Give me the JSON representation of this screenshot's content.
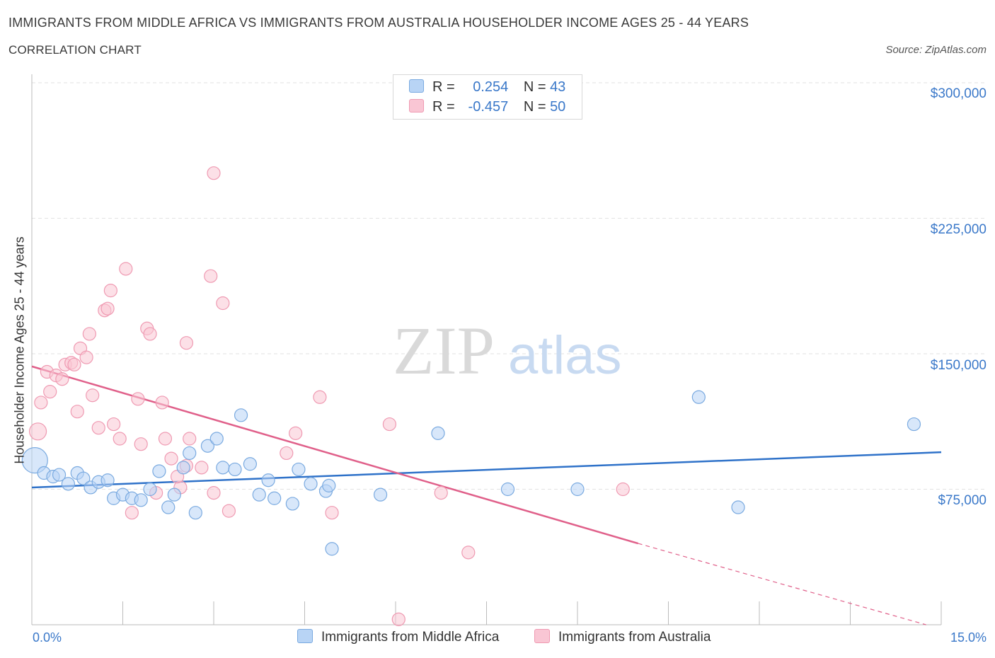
{
  "header": {
    "title": "IMMIGRANTS FROM MIDDLE AFRICA VS IMMIGRANTS FROM AUSTRALIA HOUSEHOLDER INCOME AGES 25 - 44 YEARS",
    "subtitle": "CORRELATION CHART",
    "source": "Source: ZipAtlas.com"
  },
  "watermark": {
    "zip": "ZIP",
    "atlas": "atlas"
  },
  "legend": {
    "series1": {
      "r_label": "R =",
      "r_value": "0.254",
      "n_label": "N =",
      "n_value": "43"
    },
    "series2": {
      "r_label": "R =",
      "r_value": "-0.457",
      "n_label": "N =",
      "n_value": "50"
    }
  },
  "colors": {
    "blue_fill": "#b8d4f5",
    "blue_stroke": "#7aaae0",
    "blue_line": "#2f72c9",
    "pink_fill": "#f9c6d4",
    "pink_stroke": "#ef9ab2",
    "pink_line": "#e0608a",
    "grid": "#e2e2e2",
    "axis_text": "#3a78c9"
  },
  "chart_data": {
    "type": "scatter",
    "title": "IMMIGRANTS FROM MIDDLE AFRICA VS IMMIGRANTS FROM AUSTRALIA HOUSEHOLDER INCOME AGES 25 - 44 YEARS",
    "subtitle": "CORRELATION CHART",
    "xlabel": "",
    "ylabel": "Householder Income Ages 25 - 44 years",
    "xlim": [
      0,
      15
    ],
    "ylim": [
      0,
      300000
    ],
    "x_tick_labels": [
      "0.0%",
      "15.0%"
    ],
    "y_ticks": [
      75000,
      150000,
      225000,
      300000
    ],
    "y_tick_labels": [
      "$75,000",
      "$150,000",
      "$225,000",
      "$300,000"
    ],
    "grid": true,
    "legend_position": "top-center",
    "series": [
      {
        "name": "Immigrants from Middle Africa",
        "color": "#7aaae0",
        "R": 0.254,
        "N": 43,
        "trend": {
          "x": [
            0.0,
            15.0
          ],
          "y": [
            76000,
            95500
          ]
        },
        "points": [
          [
            0.05,
            91000
          ],
          [
            0.2,
            84000
          ],
          [
            0.35,
            82000
          ],
          [
            0.45,
            83000
          ],
          [
            0.6,
            78000
          ],
          [
            0.75,
            84000
          ],
          [
            0.85,
            81000
          ],
          [
            0.97,
            76000
          ],
          [
            1.1,
            79000
          ],
          [
            1.25,
            80000
          ],
          [
            1.35,
            70000
          ],
          [
            1.5,
            72000
          ],
          [
            1.65,
            70000
          ],
          [
            1.8,
            69000
          ],
          [
            1.95,
            75000
          ],
          [
            2.1,
            85000
          ],
          [
            2.25,
            65000
          ],
          [
            2.35,
            72000
          ],
          [
            2.5,
            87000
          ],
          [
            2.6,
            95000
          ],
          [
            2.7,
            62000
          ],
          [
            2.9,
            99000
          ],
          [
            3.05,
            103000
          ],
          [
            3.15,
            87000
          ],
          [
            3.35,
            86000
          ],
          [
            3.45,
            116000
          ],
          [
            3.6,
            89000
          ],
          [
            3.75,
            72000
          ],
          [
            3.9,
            80000
          ],
          [
            4.0,
            70000
          ],
          [
            4.3,
            67000
          ],
          [
            4.4,
            86000
          ],
          [
            4.6,
            78000
          ],
          [
            4.85,
            74000
          ],
          [
            4.9,
            77000
          ],
          [
            4.95,
            42000
          ],
          [
            5.75,
            72000
          ],
          [
            6.7,
            106000
          ],
          [
            7.85,
            75000
          ],
          [
            9.0,
            75000
          ],
          [
            11.0,
            126000
          ],
          [
            11.65,
            65000
          ],
          [
            14.55,
            111000
          ]
        ],
        "point_radii": [
          18,
          9,
          9,
          9,
          9,
          9,
          9,
          9,
          9,
          9,
          9,
          9,
          9,
          9,
          9,
          9,
          9,
          9,
          9,
          9,
          9,
          9,
          9,
          9,
          9,
          9,
          9,
          9,
          9,
          9,
          9,
          9,
          9,
          9,
          9,
          9,
          9,
          9,
          9,
          9,
          9,
          9,
          9
        ]
      },
      {
        "name": "Immigrants from Australia",
        "color": "#ef9ab2",
        "R": -0.457,
        "N": 50,
        "trend": {
          "x": [
            0.0,
            10.0
          ],
          "y": [
            143000,
            45000
          ]
        },
        "trend_extrapolated": {
          "x": [
            10.0,
            14.75
          ],
          "y": [
            45000,
            0
          ]
        },
        "points": [
          [
            0.1,
            107000
          ],
          [
            0.15,
            123000
          ],
          [
            0.25,
            140000
          ],
          [
            0.3,
            129000
          ],
          [
            0.4,
            138000
          ],
          [
            0.5,
            136000
          ],
          [
            0.55,
            144000
          ],
          [
            0.65,
            145000
          ],
          [
            0.7,
            144000
          ],
          [
            0.75,
            118000
          ],
          [
            0.8,
            153000
          ],
          [
            0.9,
            148000
          ],
          [
            0.95,
            161000
          ],
          [
            1.0,
            127000
          ],
          [
            1.1,
            109000
          ],
          [
            1.2,
            174000
          ],
          [
            1.25,
            175000
          ],
          [
            1.3,
            185000
          ],
          [
            1.35,
            111000
          ],
          [
            1.45,
            103000
          ],
          [
            1.55,
            197000
          ],
          [
            1.65,
            62000
          ],
          [
            1.75,
            125000
          ],
          [
            1.8,
            100000
          ],
          [
            1.9,
            164000
          ],
          [
            1.95,
            161000
          ],
          [
            2.05,
            73000
          ],
          [
            2.15,
            123000
          ],
          [
            2.2,
            103000
          ],
          [
            2.3,
            92000
          ],
          [
            2.45,
            76000
          ],
          [
            2.55,
            156000
          ],
          [
            2.6,
            103000
          ],
          [
            2.8,
            87000
          ],
          [
            2.95,
            193000
          ],
          [
            3.0,
            73000
          ],
          [
            3.0,
            250000
          ],
          [
            3.15,
            178000
          ],
          [
            3.25,
            63000
          ],
          [
            4.2,
            95000
          ],
          [
            4.35,
            106000
          ],
          [
            4.75,
            126000
          ],
          [
            4.95,
            62000
          ],
          [
            5.9,
            111000
          ],
          [
            6.05,
            3000
          ],
          [
            6.75,
            73000
          ],
          [
            7.2,
            40000
          ],
          [
            9.75,
            75000
          ],
          [
            2.4,
            82000
          ],
          [
            2.55,
            88000
          ]
        ],
        "point_radii": [
          12,
          9,
          9,
          9,
          9,
          9,
          9,
          9,
          9,
          9,
          9,
          9,
          9,
          9,
          9,
          9,
          9,
          9,
          9,
          9,
          9,
          9,
          9,
          9,
          9,
          9,
          9,
          9,
          9,
          9,
          9,
          9,
          9,
          9,
          9,
          9,
          9,
          9,
          9,
          9,
          9,
          9,
          9,
          9,
          9,
          9,
          9,
          9,
          9,
          9
        ]
      }
    ]
  }
}
